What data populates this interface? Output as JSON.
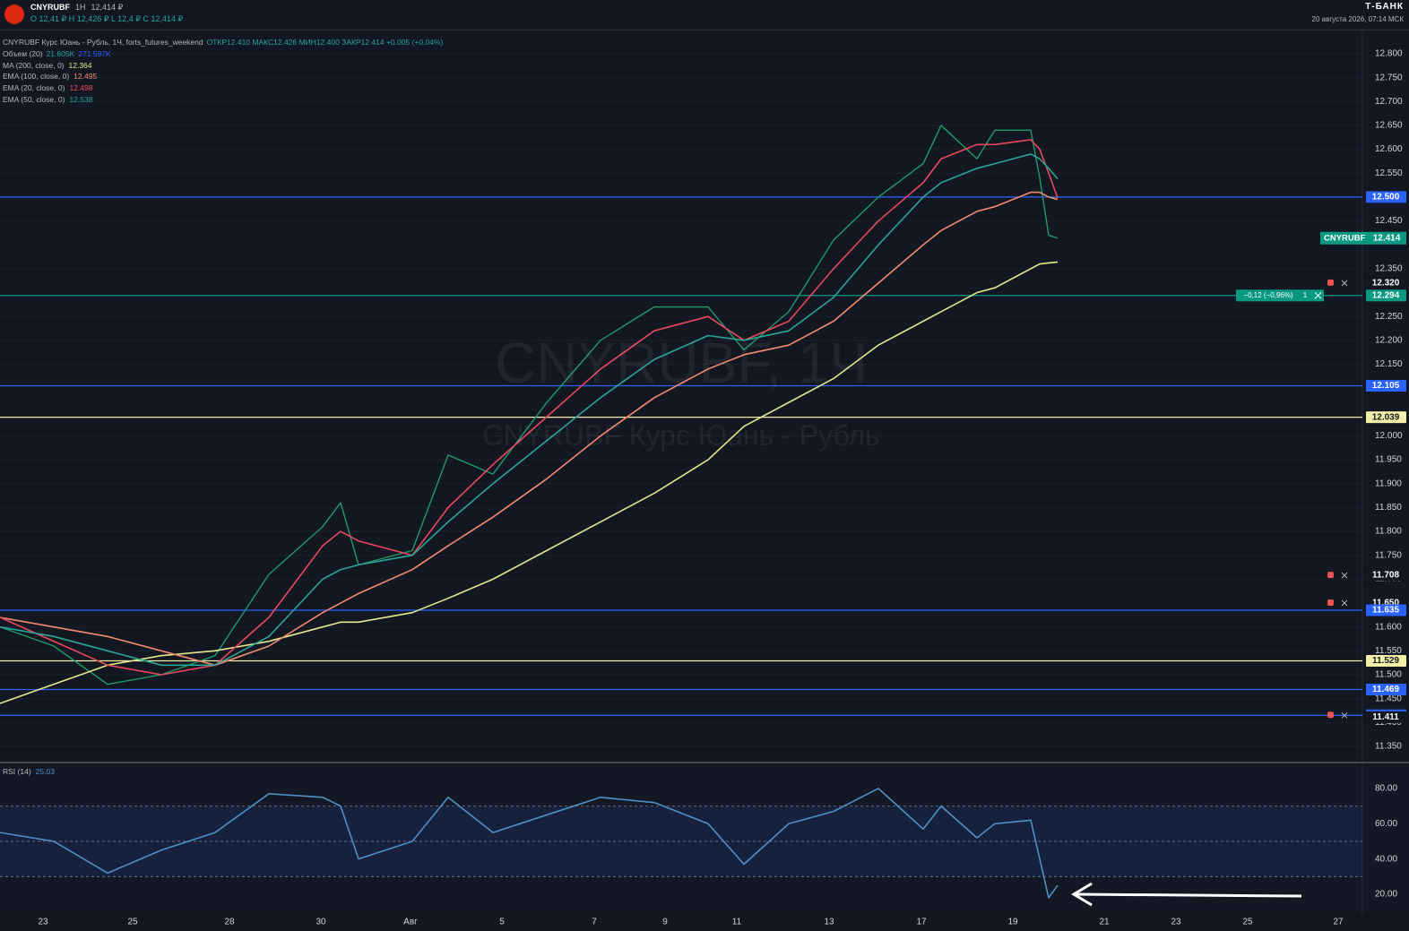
{
  "header": {
    "symbol": "CNYRUBF",
    "interval": "1Н",
    "price": "12,414 ₽",
    "ohlc": "O 12,41 ₽  H 12,426 ₽  L 12,4 ₽  C 12,414 ₽",
    "brand": "Т-БАНК",
    "datetime": "20 августа 2026, 07:14 МСК"
  },
  "chart_data": [
    {
      "type": "line",
      "title": "CNYRUBF Курс Юань - Рубль, 1Ч, forts_futures_weekend",
      "ohlc_text": "ОТКР12.410 МАКС12.426 МИН12.400 ЗАКР12.414 +0.005 (+0.04%)",
      "watermark": [
        "CNYRUBF, 1Ч",
        "CNYRUBF Курс Юань - Рубль"
      ],
      "volume_legend": {
        "name": "Объем (20)",
        "values": [
          "21.605K",
          "271.597K"
        ]
      },
      "x": [
        0,
        6,
        12,
        18,
        24,
        30,
        36,
        38,
        40,
        46,
        50,
        55,
        61,
        67,
        73,
        79,
        83,
        88,
        93,
        98,
        103,
        105,
        109,
        111,
        115,
        116,
        117,
        118
      ],
      "xlim": [
        0,
        152
      ],
      "ylim": [
        11.318,
        12.845
      ],
      "grid": true,
      "series": [
        {
          "name": "CNYRUBF",
          "color": "#1e9b6a",
          "values": [
            11.6,
            11.56,
            11.48,
            11.5,
            11.54,
            11.71,
            11.81,
            11.86,
            11.73,
            11.76,
            11.96,
            11.92,
            12.07,
            12.2,
            12.27,
            12.27,
            12.18,
            12.26,
            12.41,
            12.5,
            12.57,
            12.65,
            12.58,
            12.64,
            12.64,
            12.54,
            12.42,
            12.414
          ]
        },
        {
          "name": "MA (200, close, 0)",
          "legend_value": "12.364",
          "color": "#e3e88c",
          "values": [
            11.44,
            11.48,
            11.52,
            11.54,
            11.55,
            11.57,
            11.6,
            11.61,
            11.61,
            11.63,
            11.66,
            11.7,
            11.76,
            11.82,
            11.88,
            11.95,
            12.02,
            12.07,
            12.12,
            12.19,
            12.24,
            12.26,
            12.3,
            12.31,
            12.35,
            12.36,
            12.362,
            12.364
          ]
        },
        {
          "name": "EMA (100, close, 0)",
          "legend_value": "12.495",
          "color": "#f28b6e",
          "values": [
            11.62,
            11.6,
            11.58,
            11.55,
            11.52,
            11.56,
            11.63,
            11.65,
            11.67,
            11.72,
            11.77,
            11.83,
            11.91,
            12.0,
            12.08,
            12.14,
            12.17,
            12.19,
            12.24,
            12.32,
            12.4,
            12.43,
            12.47,
            12.48,
            12.51,
            12.51,
            12.5,
            12.495
          ]
        },
        {
          "name": "EMA (20, close, 0)",
          "legend_value": "12.498",
          "color": "#e8485c",
          "values": [
            11.62,
            11.57,
            11.52,
            11.5,
            11.52,
            11.62,
            11.77,
            11.8,
            11.78,
            11.75,
            11.85,
            11.94,
            12.04,
            12.14,
            12.22,
            12.25,
            12.2,
            12.24,
            12.35,
            12.45,
            12.53,
            12.58,
            12.61,
            12.61,
            12.62,
            12.6,
            12.55,
            12.498
          ]
        },
        {
          "name": "EMA (50, close, 0)",
          "legend_value": "12.538",
          "color": "#2aa595",
          "values": [
            11.6,
            11.58,
            11.55,
            11.52,
            11.52,
            11.58,
            11.7,
            11.72,
            11.73,
            11.75,
            11.82,
            11.9,
            11.99,
            12.08,
            12.16,
            12.21,
            12.2,
            12.22,
            12.29,
            12.4,
            12.5,
            12.53,
            12.56,
            12.57,
            12.59,
            12.58,
            12.56,
            12.538
          ]
        }
      ],
      "price_tag": {
        "value": 12.414,
        "label": "12.414",
        "color": "#089981"
      },
      "levels": [
        {
          "value": 12.5,
          "label": "12.500",
          "color": "#2962ff",
          "line": true
        },
        {
          "value": 12.32,
          "label": "12.320",
          "color": "#131722",
          "line": false,
          "alert": true
        },
        {
          "value": 12.294,
          "label": "12.294",
          "color": "#089981",
          "line": true,
          "position_text": "−0,12 (−0,96%)",
          "qty": 1
        },
        {
          "value": 12.105,
          "label": "12.105",
          "color": "#2962ff",
          "line": true
        },
        {
          "value": 12.039,
          "label": "12.039",
          "color": "#f3efa6",
          "line": true
        },
        {
          "value": 11.708,
          "label": "11.708",
          "color": "#131722",
          "line": false,
          "alert": true
        },
        {
          "value": 11.65,
          "label": "11.650",
          "color": "#131722",
          "line": false,
          "alert": true
        },
        {
          "value": 11.635,
          "label": "11.635",
          "color": "#2962ff",
          "line": true
        },
        {
          "value": 11.529,
          "label": "11.529",
          "color": "#f3efa6",
          "line": true
        },
        {
          "value": 11.469,
          "label": "11.469",
          "color": "#2962ff",
          "line": true
        },
        {
          "value": 11.415,
          "label": "11.415",
          "color": "#2962ff",
          "line": true,
          "alert": true
        },
        {
          "value": 11.411,
          "label": "11.411",
          "color": "#131722",
          "line": false
        }
      ],
      "yticks": [
        {
          "value": 11.35,
          "label": "11.350"
        },
        {
          "value": 11.4,
          "label": "11.400"
        },
        {
          "value": 11.45,
          "label": "11.450"
        },
        {
          "value": 11.5,
          "label": "11.500"
        },
        {
          "value": 11.55,
          "label": "11.550"
        },
        {
          "value": 11.6,
          "label": "11.600"
        },
        {
          "value": 11.7,
          "label": "11.700"
        },
        {
          "value": 11.75,
          "label": "11.750"
        },
        {
          "value": 11.8,
          "label": "11.800"
        },
        {
          "value": 11.85,
          "label": "11.850"
        },
        {
          "value": 11.9,
          "label": "11.900"
        },
        {
          "value": 11.95,
          "label": "11.950"
        },
        {
          "value": 12.0,
          "label": "12.000"
        },
        {
          "value": 12.15,
          "label": "12.150"
        },
        {
          "value": 12.2,
          "label": "12.200"
        },
        {
          "value": 12.25,
          "label": "12.250"
        },
        {
          "value": 12.35,
          "label": "12.350"
        },
        {
          "value": 12.45,
          "label": "12.450"
        },
        {
          "value": 12.55,
          "label": "12.550"
        },
        {
          "value": 12.6,
          "label": "12.600"
        },
        {
          "value": 12.65,
          "label": "12.650"
        },
        {
          "value": 12.7,
          "label": "12.700"
        },
        {
          "value": 12.75,
          "label": "12.750"
        },
        {
          "value": 12.8,
          "label": "12.800"
        }
      ]
    },
    {
      "type": "line",
      "title": "RSI (14)",
      "legend_value": "25.03",
      "x": [
        0,
        6,
        12,
        18,
        24,
        30,
        36,
        38,
        40,
        46,
        50,
        55,
        61,
        67,
        73,
        79,
        83,
        88,
        93,
        98,
        103,
        105,
        109,
        111,
        115,
        116,
        117,
        118
      ],
      "xlim": [
        0,
        152
      ],
      "ylim": [
        8.8,
        94.2
      ],
      "series": [
        {
          "name": "RSI (14)",
          "color": "#4f8fc4",
          "values": [
            55,
            50,
            32,
            45,
            55,
            77,
            75,
            70,
            40,
            50,
            75,
            55,
            65,
            75,
            72,
            60,
            37,
            60,
            67,
            80,
            57,
            70,
            52,
            60,
            62,
            40,
            18,
            25.03
          ]
        }
      ],
      "levels": [
        30,
        50,
        70
      ],
      "yticks": [
        {
          "value": 20,
          "label": "20.00"
        },
        {
          "value": 40,
          "label": "40.00"
        },
        {
          "value": 60,
          "label": "60.00"
        },
        {
          "value": 80,
          "label": "80.00"
        }
      ],
      "xticks": [
        {
          "value": 4.8,
          "label": "23"
        },
        {
          "value": 14.8,
          "label": "25"
        },
        {
          "value": 25.6,
          "label": "28"
        },
        {
          "value": 35.8,
          "label": "30"
        },
        {
          "value": 45.8,
          "label": "Авг"
        },
        {
          "value": 56,
          "label": "5"
        },
        {
          "value": 66.3,
          "label": "7"
        },
        {
          "value": 74.2,
          "label": "9"
        },
        {
          "value": 82.2,
          "label": "11"
        },
        {
          "value": 92.5,
          "label": "13"
        },
        {
          "value": 102.8,
          "label": "17"
        },
        {
          "value": 113,
          "label": "19"
        },
        {
          "value": 123.2,
          "label": "21"
        },
        {
          "value": 131.2,
          "label": "23"
        },
        {
          "value": 139.2,
          "label": "25"
        },
        {
          "value": 149.3,
          "label": "27"
        }
      ]
    }
  ]
}
